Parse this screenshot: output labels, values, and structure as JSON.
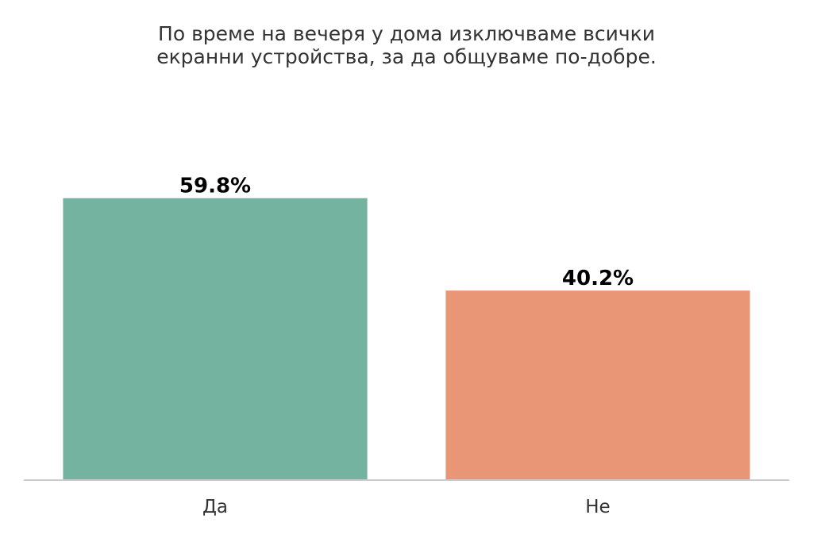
{
  "chart_data": {
    "type": "bar",
    "title": [
      "По време на вечеря у дома изключваме всички",
      "екранни устройства, за да общуваме по-добре."
    ],
    "categories": [
      "Да",
      "Не"
    ],
    "values": [
      59.8,
      40.2
    ],
    "value_labels": [
      "59.8%",
      "40.2%"
    ],
    "colors": [
      "#73b3a0",
      "#e89675"
    ],
    "axis_color": "#cccccc",
    "ylim": [
      0,
      85
    ],
    "grid": false,
    "legend": "none"
  }
}
